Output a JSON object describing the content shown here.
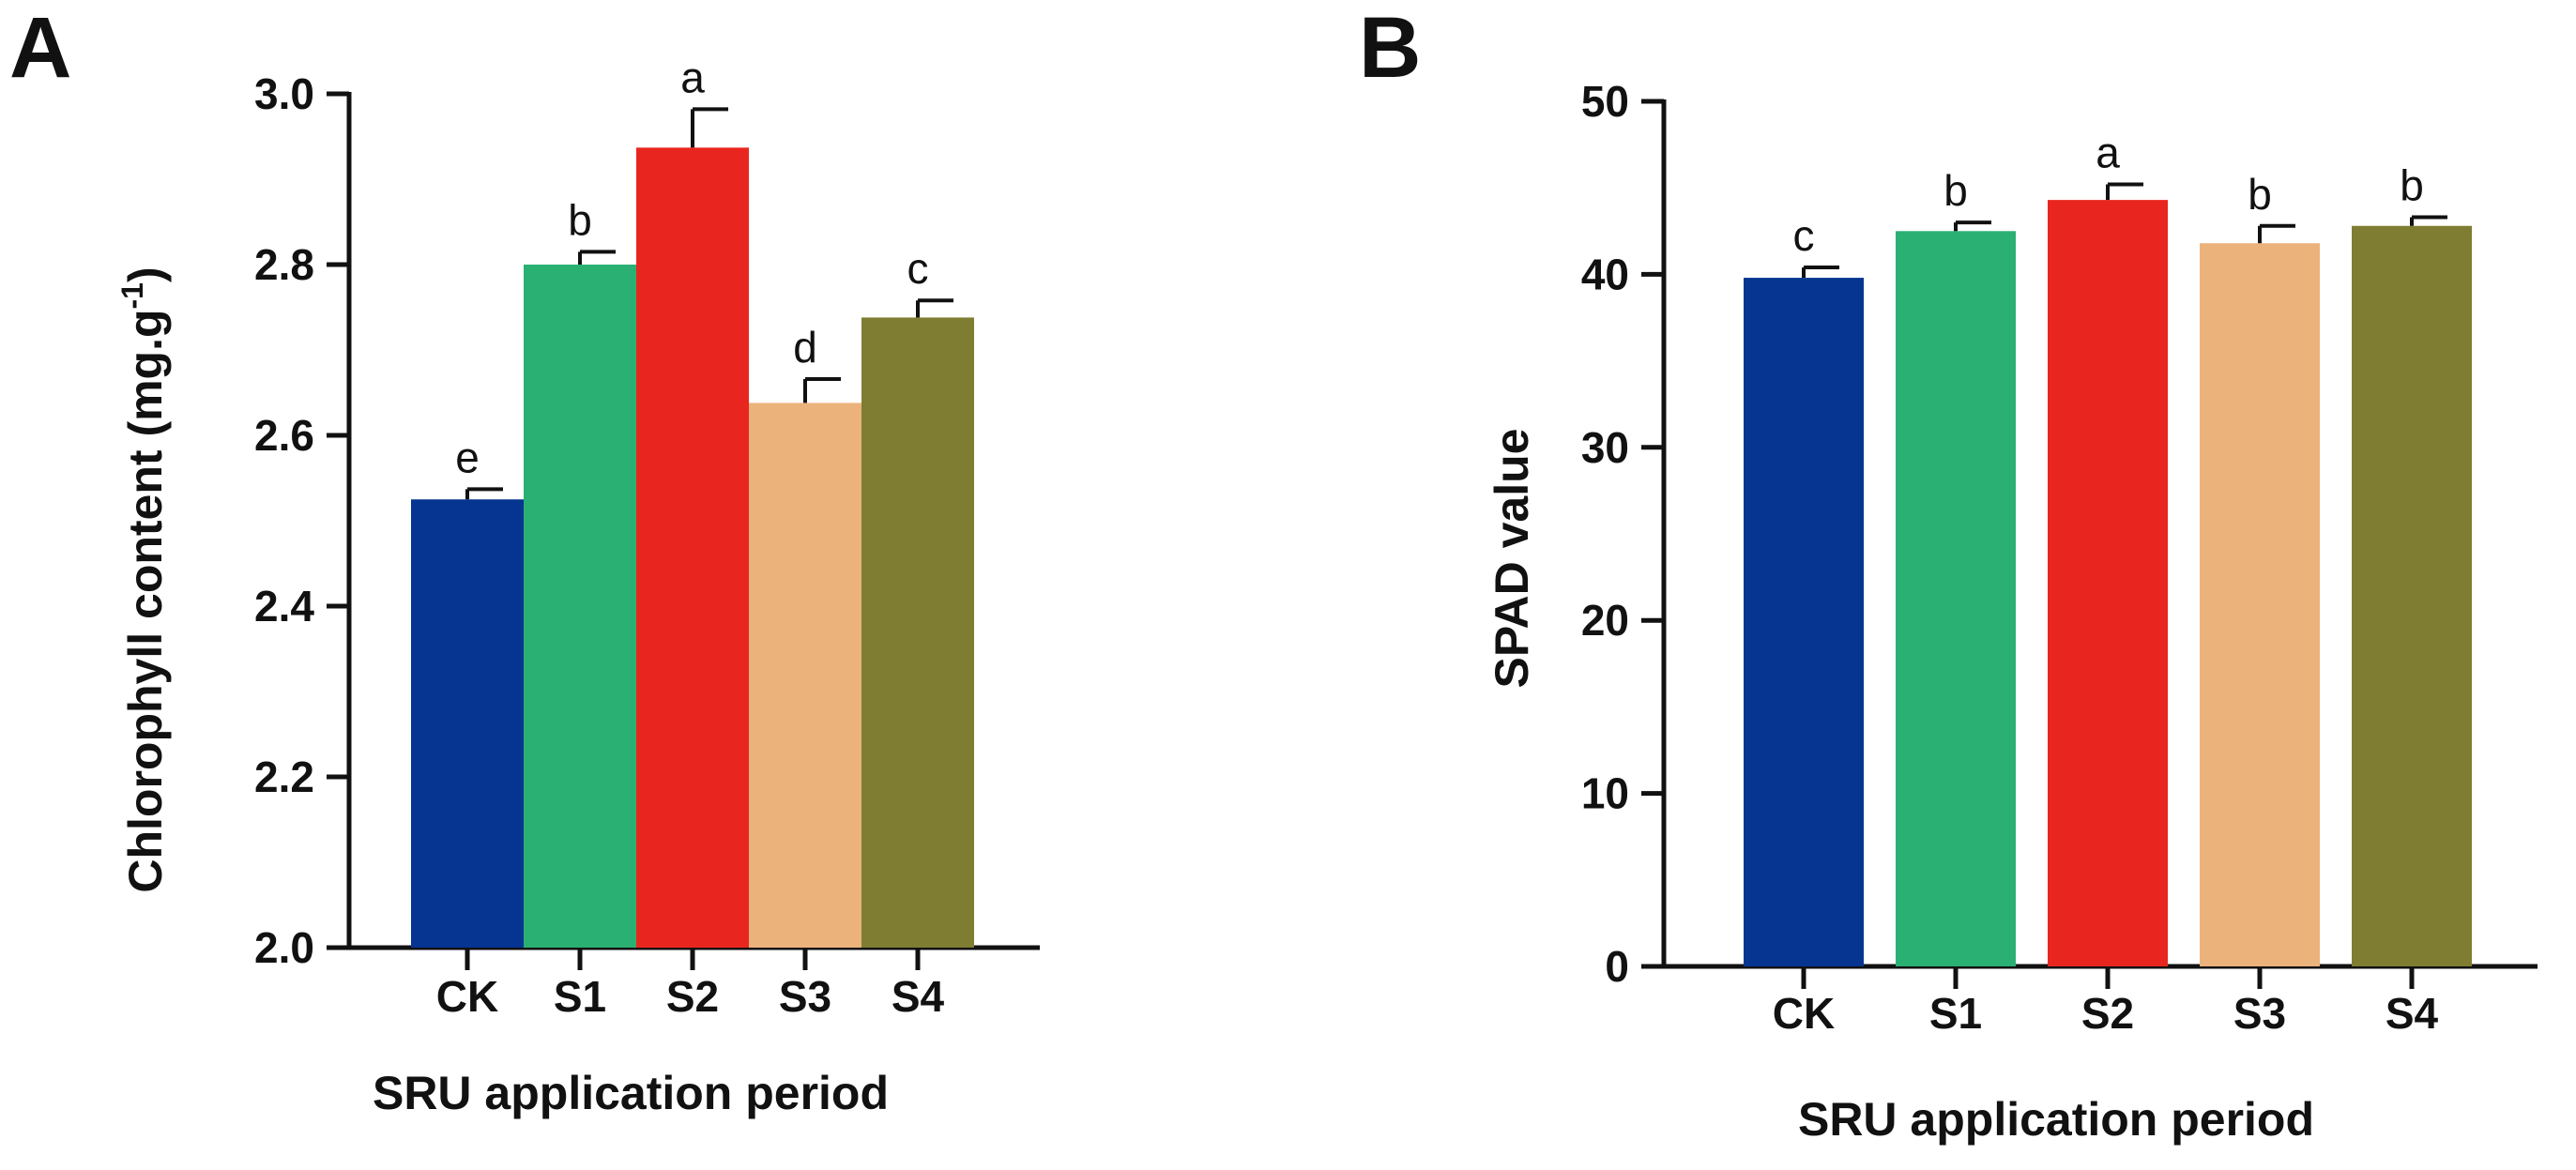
{
  "chart_data": [
    {
      "panel": "A",
      "type": "bar",
      "title": "",
      "categories": [
        "CK",
        "S1",
        "S2",
        "S3",
        "S4"
      ],
      "values": [
        2.525,
        2.8,
        2.937,
        2.638,
        2.738
      ],
      "errors": [
        0.012,
        0.015,
        0.045,
        0.028,
        0.02
      ],
      "significance": [
        "e",
        "b",
        "a",
        "d",
        "c"
      ],
      "colors": [
        "#063591",
        "#2bb073",
        "#e8261f",
        "#ecb27c",
        "#7f7d31"
      ],
      "xlabel": "SRU application period",
      "ylabel": "Chlorophyll content (mg.g",
      "ylabel_superscript": "-1",
      "ylabel_close": ")",
      "ylim": [
        2.0,
        3.0
      ],
      "yticks": [
        2.0,
        2.2,
        2.4,
        2.6,
        2.8,
        3.0
      ],
      "ytick_labels": [
        "2.0",
        "2.2",
        "2.4",
        "2.6",
        "2.8",
        "3.0"
      ],
      "grid": false
    },
    {
      "panel": "B",
      "type": "bar",
      "title": "",
      "categories": [
        "CK",
        "S1",
        "S2",
        "S3",
        "S4"
      ],
      "values": [
        39.8,
        42.5,
        44.3,
        41.8,
        42.8
      ],
      "errors": [
        0.6,
        0.5,
        0.9,
        1.0,
        0.5
      ],
      "significance": [
        "c",
        "b",
        "a",
        "b",
        "b"
      ],
      "colors": [
        "#063591",
        "#2bb073",
        "#e8261f",
        "#ecb27c",
        "#7f7d31"
      ],
      "xlabel": "SRU application period",
      "ylabel": "SPAD value",
      "ylim": [
        0,
        50
      ],
      "yticks": [
        0,
        10,
        20,
        30,
        40,
        50
      ],
      "ytick_labels": [
        "0",
        "10",
        "20",
        "30",
        "40",
        "50"
      ],
      "grid": false
    }
  ]
}
